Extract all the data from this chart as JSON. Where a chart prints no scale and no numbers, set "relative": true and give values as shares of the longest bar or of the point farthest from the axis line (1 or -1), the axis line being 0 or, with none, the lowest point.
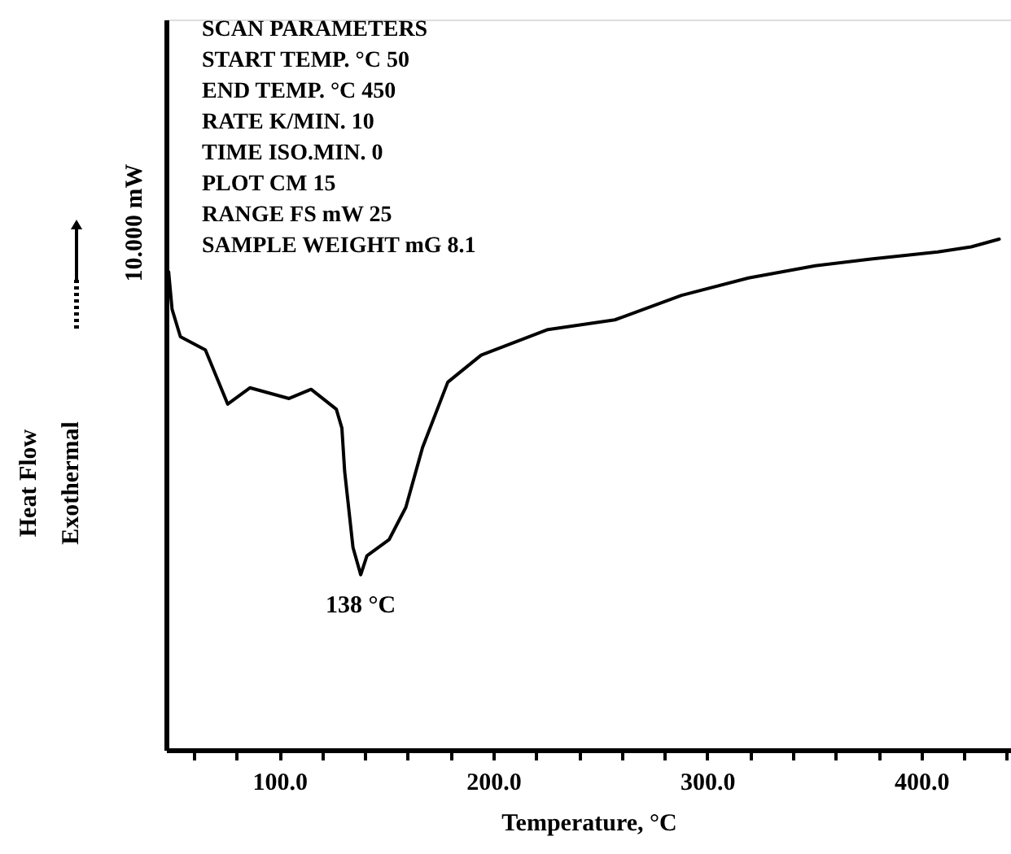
{
  "chart_data": {
    "type": "line",
    "relative": true,
    "xlabel": "Temperature, °C",
    "ylabel": "Heat Flow\nExothermal",
    "x": [
      48.2,
      49.8,
      53.7,
      65.4,
      75.8,
      86.2,
      104.5,
      114.8,
      126.6,
      129.2,
      130.5,
      134.4,
      138,
      140.9,
      151.3,
      159.1,
      166.9,
      178.7,
      194.3,
      225.5,
      256.8,
      288,
      319.3,
      350.5,
      376.5,
      407.8,
      423.4,
      436.5
    ],
    "series": [
      {
        "color": "#000000",
        "values": [
          0.936,
          0.863,
          0.809,
          0.783,
          0.677,
          0.709,
          0.688,
          0.706,
          0.667,
          0.63,
          0.545,
          0.396,
          0.343,
          0.38,
          0.412,
          0.475,
          0.592,
          0.72,
          0.773,
          0.823,
          0.842,
          0.89,
          0.924,
          0.948,
          0.961,
          0.975,
          0.985,
          1.0
        ]
      }
    ],
    "xlim": [
      47,
      442
    ],
    "xticks": [
      {
        "value": 60,
        "label": null
      },
      {
        "value": 80,
        "label": null
      },
      {
        "value": 100,
        "label": "100.0"
      },
      {
        "value": 120,
        "label": null
      },
      {
        "value": 140,
        "label": null
      },
      {
        "value": 160,
        "label": null
      },
      {
        "value": 180,
        "label": null
      },
      {
        "value": 200,
        "label": "200.0"
      },
      {
        "value": 220,
        "label": null
      },
      {
        "value": 240,
        "label": null
      },
      {
        "value": 260,
        "label": null
      },
      {
        "value": 280,
        "label": null
      },
      {
        "value": 300,
        "label": "300.0"
      },
      {
        "value": 320,
        "label": null
      },
      {
        "value": 340,
        "label": null
      },
      {
        "value": 360,
        "label": null
      },
      {
        "value": 380,
        "label": null
      },
      {
        "value": 400,
        "label": "400.0"
      },
      {
        "value": 420,
        "label": null
      },
      {
        "value": 440,
        "label": null
      }
    ],
    "annotations": [
      {
        "text": "138 °C",
        "x": 138,
        "y": 0.343
      },
      "10.000  mW",
      "SCAN PARAMETERS",
      "START TEMP. °C 50",
      "END TEMP. °C 450",
      "RATE K/MIN. 10",
      "TIME ISO.MIN. 0",
      "PLOT CM 15",
      "RANGE FS mW 25",
      "SAMPLE WEIGHT mG 8.1"
    ],
    "grid": false,
    "line_style": "solid",
    "marker": "none"
  }
}
